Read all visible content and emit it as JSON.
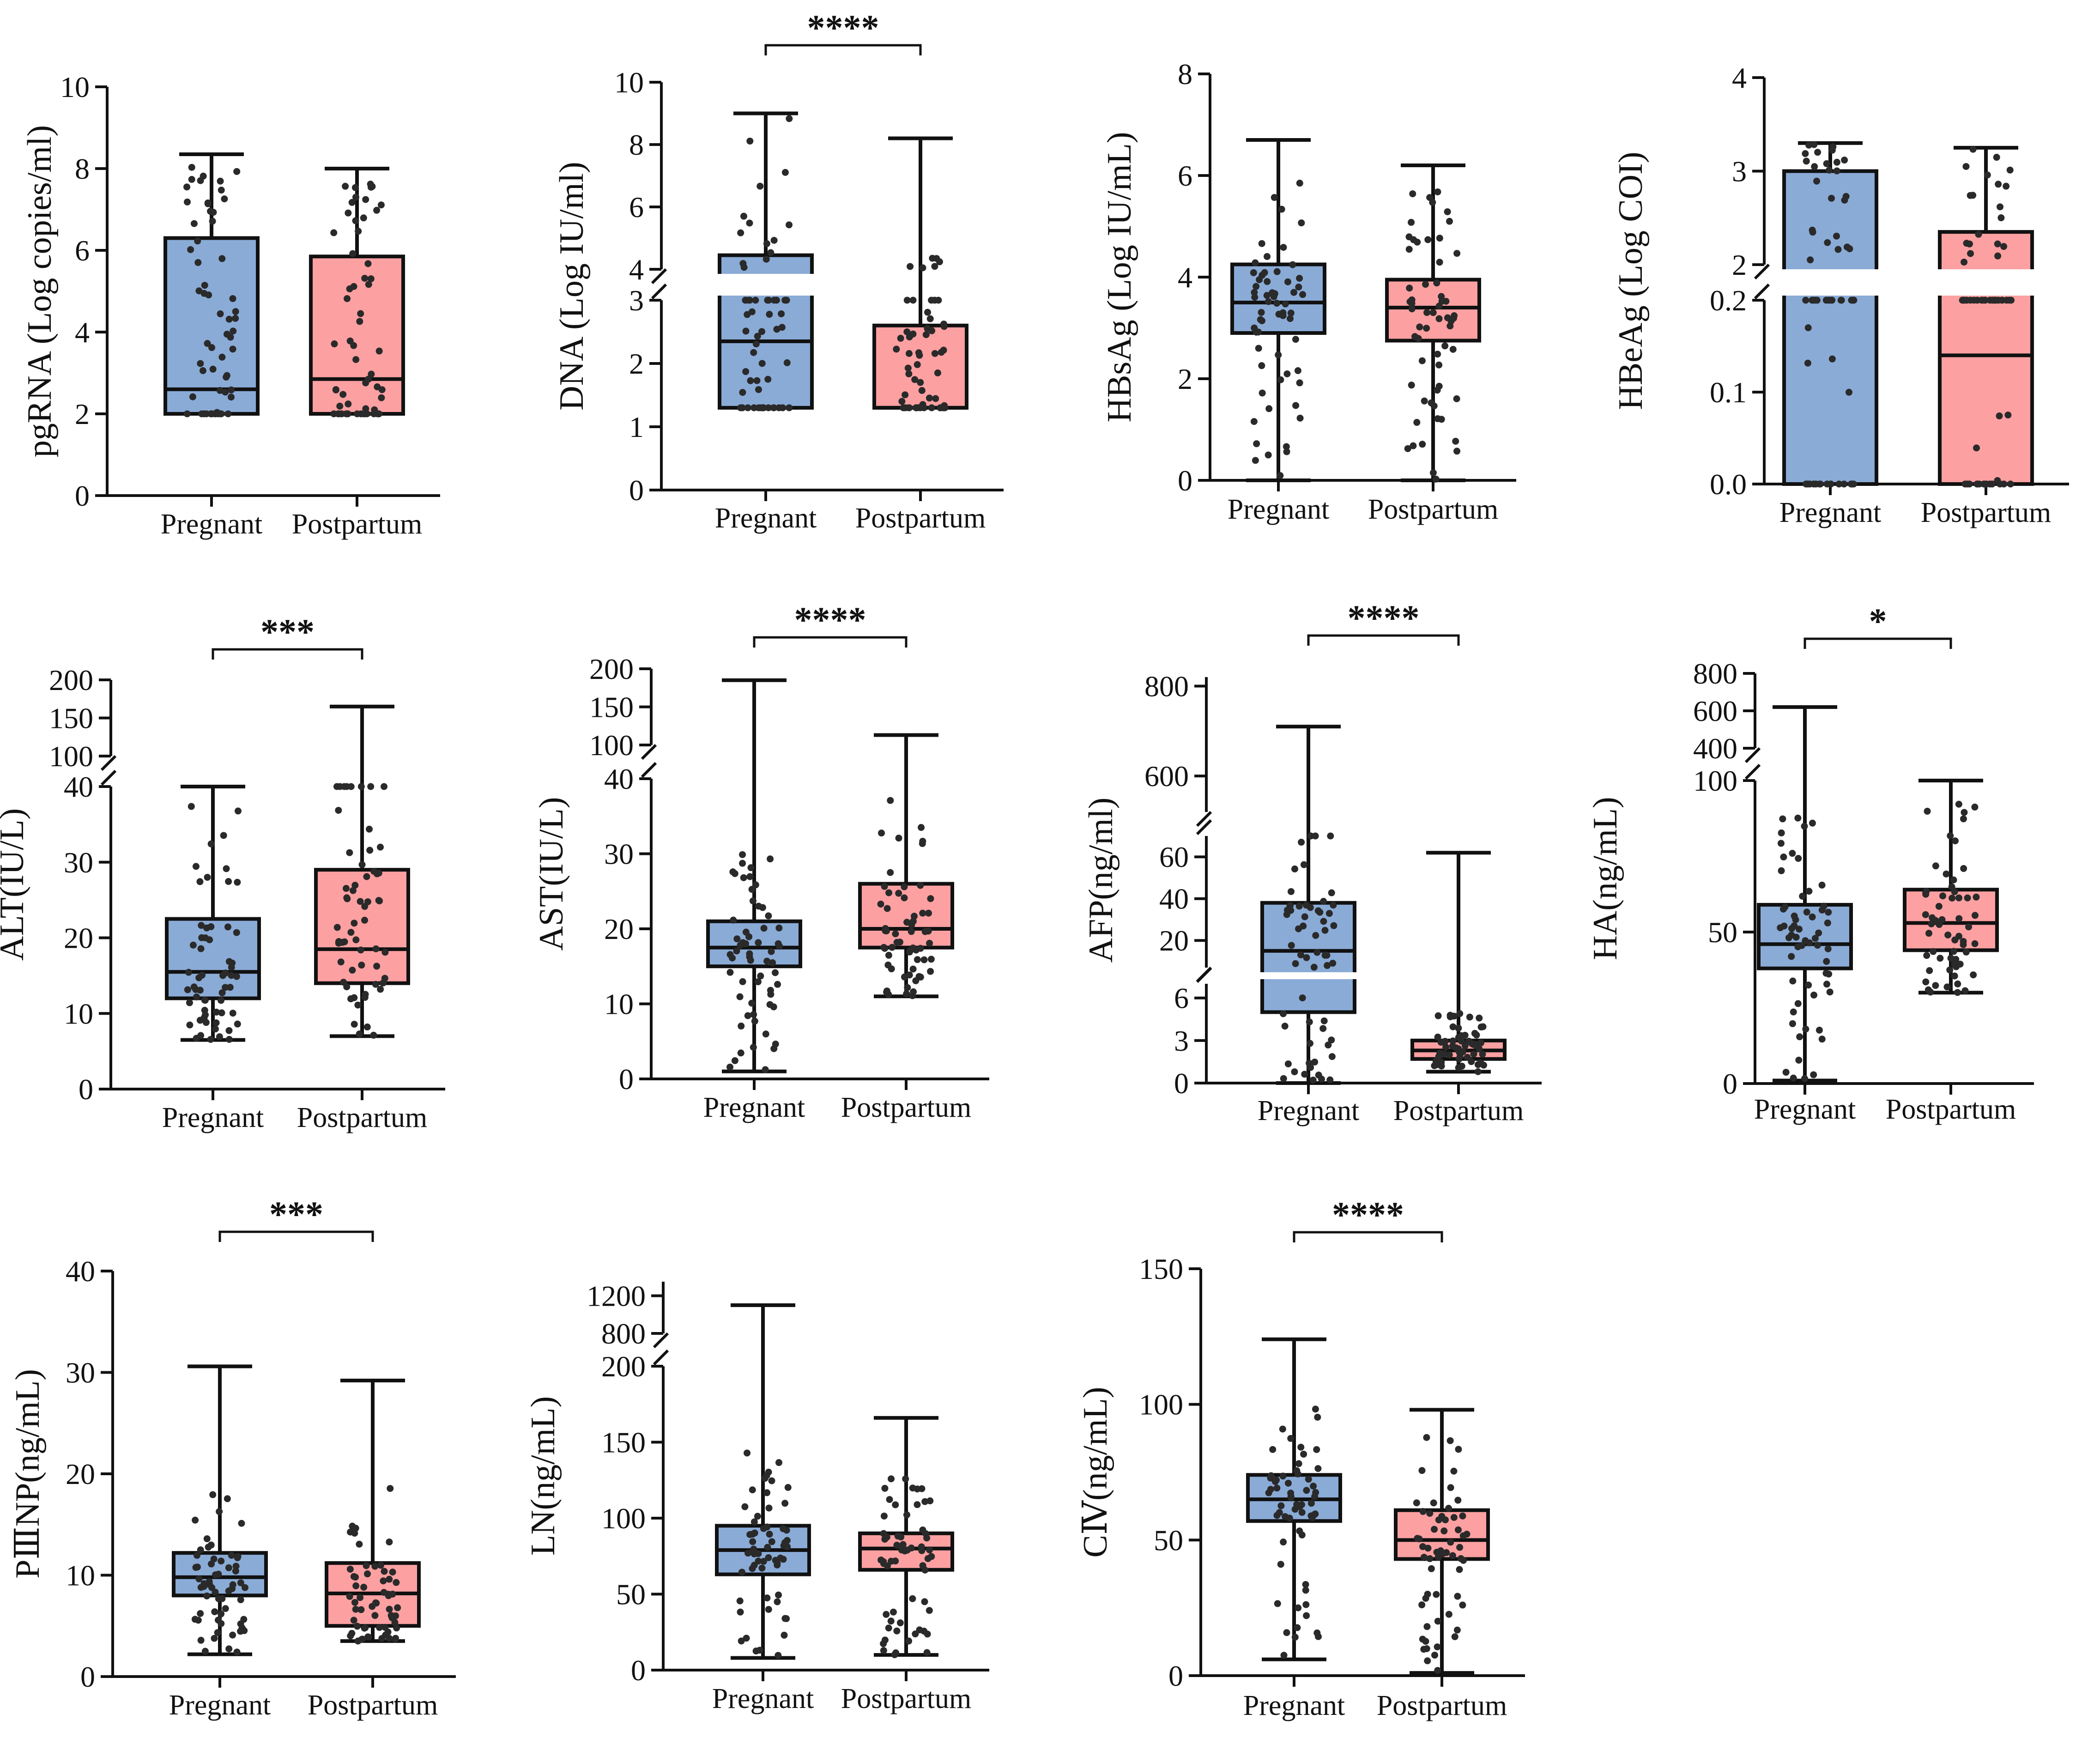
{
  "colors": {
    "pregnant": "#8AABD6",
    "postpartum": "#FCA0A2",
    "ink": "#111111",
    "dots": "#2a2a2a"
  },
  "chart_data": [
    {
      "type": "box",
      "ylabel": "pgRNA (Log copies/ml)",
      "categories": [
        "Pregnant",
        "Postpartum"
      ],
      "sig": "",
      "segments": [
        {
          "ylim": [
            0,
            10
          ],
          "ticks": [
            0,
            2,
            4,
            6,
            8,
            10
          ]
        }
      ],
      "series": [
        {
          "name": "Pregnant",
          "min": 2.0,
          "q1": 2.0,
          "median": 2.6,
          "q3": 6.3,
          "max": 8.35
        },
        {
          "name": "Postpartum",
          "min": 2.0,
          "q1": 2.0,
          "median": 2.85,
          "q3": 5.85,
          "max": 8.0
        }
      ]
    },
    {
      "type": "box",
      "ylabel": "DNA (Log IU/ml)",
      "categories": [
        "Pregnant",
        "Postpartum"
      ],
      "sig": "****",
      "segments": [
        {
          "ylim": [
            0,
            3
          ],
          "ticks": [
            0,
            1,
            2,
            3
          ]
        },
        {
          "ylim": [
            4,
            10
          ],
          "ticks": [
            4,
            6,
            8,
            10
          ]
        }
      ],
      "series": [
        {
          "name": "Pregnant",
          "min": 1.3,
          "q1": 1.3,
          "median": 2.35,
          "q3": 4.45,
          "max": 9.0
        },
        {
          "name": "Postpartum",
          "min": 1.3,
          "q1": 1.3,
          "median": 1.3,
          "q3": 2.6,
          "max": 8.2
        }
      ]
    },
    {
      "type": "box",
      "ylabel": "HBsAg (Log IU/mL)",
      "categories": [
        "Pregnant",
        "Postpartum"
      ],
      "sig": "",
      "segments": [
        {
          "ylim": [
            0,
            8
          ],
          "ticks": [
            0,
            2,
            4,
            6,
            8
          ]
        }
      ],
      "series": [
        {
          "name": "Pregnant",
          "min": 0.0,
          "q1": 2.9,
          "median": 3.5,
          "q3": 4.25,
          "max": 6.7
        },
        {
          "name": "Postpartum",
          "min": 0.0,
          "q1": 2.75,
          "median": 3.4,
          "q3": 3.95,
          "max": 6.2
        }
      ]
    },
    {
      "type": "box",
      "ylabel": "HBeAg (Log COI)",
      "categories": [
        "Pregnant",
        "Postpartum"
      ],
      "sig": "",
      "segments": [
        {
          "ylim": [
            0,
            0.2
          ],
          "ticks": [
            0.0,
            0.1,
            0.2
          ]
        },
        {
          "ylim": [
            2,
            4
          ],
          "ticks": [
            2,
            3,
            4
          ]
        }
      ],
      "series": [
        {
          "name": "Pregnant",
          "min": 0.0,
          "q1": 0.0,
          "median": 0.0,
          "q3": 3.0,
          "max": 3.3
        },
        {
          "name": "Postpartum",
          "min": 0.0,
          "q1": 0.0,
          "median": 0.14,
          "q3": 2.35,
          "max": 3.25
        }
      ]
    },
    {
      "type": "box",
      "ylabel": "ALT(IU/L)",
      "categories": [
        "Pregnant",
        "Postpartum"
      ],
      "sig": "***",
      "segments": [
        {
          "ylim": [
            0,
            40
          ],
          "ticks": [
            0,
            10,
            20,
            30,
            40
          ]
        },
        {
          "ylim": [
            100,
            200
          ],
          "ticks": [
            100,
            150,
            200
          ]
        }
      ],
      "series": [
        {
          "name": "Pregnant",
          "min": 6.5,
          "q1": 12.0,
          "median": 15.5,
          "q3": 22.5,
          "max": 40.0
        },
        {
          "name": "Postpartum",
          "min": 7.0,
          "q1": 14.0,
          "median": 18.5,
          "q3": 29.0,
          "max": 165
        }
      ]
    },
    {
      "type": "box",
      "ylabel": "AST(IU/L)",
      "categories": [
        "Pregnant",
        "Postpartum"
      ],
      "sig": "****",
      "segments": [
        {
          "ylim": [
            0,
            40
          ],
          "ticks": [
            0,
            10,
            20,
            30,
            40
          ]
        },
        {
          "ylim": [
            100,
            200
          ],
          "ticks": [
            100,
            150,
            200
          ]
        }
      ],
      "series": [
        {
          "name": "Pregnant",
          "min": 1.0,
          "q1": 15.0,
          "median": 17.5,
          "q3": 21.0,
          "max": 185
        },
        {
          "name": "Postpartum",
          "min": 11.0,
          "q1": 17.5,
          "median": 20.0,
          "q3": 26.0,
          "max": 113
        }
      ]
    },
    {
      "type": "box",
      "ylabel": "AFP(ng/ml)",
      "categories": [
        "Pregnant",
        "Postpartum"
      ],
      "sig": "****",
      "segments": [
        {
          "ylim": [
            0,
            7
          ],
          "ticks": [
            0,
            3,
            6
          ]
        },
        {
          "ylim": [
            7,
            70
          ],
          "ticks": [
            20,
            40,
            60
          ]
        },
        {
          "ylim": [
            520,
            820
          ],
          "ticks": [
            600,
            800
          ]
        }
      ],
      "series": [
        {
          "name": "Pregnant",
          "min": 0.0,
          "q1": 5.0,
          "median": 15.0,
          "q3": 38.0,
          "max": 710
        },
        {
          "name": "Postpartum",
          "min": 0.8,
          "q1": 1.7,
          "median": 2.3,
          "q3": 3.0,
          "max": 62
        }
      ]
    },
    {
      "type": "box",
      "ylabel": "HA(ng/mL)",
      "categories": [
        "Pregnant",
        "Postpartum"
      ],
      "sig": "*",
      "segments": [
        {
          "ylim": [
            0,
            100
          ],
          "ticks": [
            0,
            50,
            100
          ]
        },
        {
          "ylim": [
            400,
            800
          ],
          "ticks": [
            400,
            600,
            800
          ]
        }
      ],
      "series": [
        {
          "name": "Pregnant",
          "min": 1.0,
          "q1": 38.0,
          "median": 46.0,
          "q3": 59.0,
          "max": 620
        },
        {
          "name": "Postpartum",
          "min": 30.0,
          "q1": 44.0,
          "median": 53.0,
          "q3": 64.0,
          "max": 100
        }
      ]
    },
    {
      "type": "box",
      "ylabel": "PⅢNP(ng/mL)",
      "categories": [
        "Pregnant",
        "Postpartum"
      ],
      "sig": "***",
      "segments": [
        {
          "ylim": [
            0,
            40
          ],
          "ticks": [
            0,
            10,
            20,
            30,
            40
          ]
        }
      ],
      "series": [
        {
          "name": "Pregnant",
          "min": 2.2,
          "q1": 8.0,
          "median": 9.8,
          "q3": 12.2,
          "max": 30.6
        },
        {
          "name": "Postpartum",
          "min": 3.5,
          "q1": 5.0,
          "median": 8.2,
          "q3": 11.2,
          "max": 29.2
        }
      ]
    },
    {
      "type": "box",
      "ylabel": "LN(ng/mL)",
      "categories": [
        "Pregnant",
        "Postpartum"
      ],
      "sig": "",
      "segments": [
        {
          "ylim": [
            0,
            200
          ],
          "ticks": [
            0,
            50,
            100,
            150,
            200
          ]
        },
        {
          "ylim": [
            800,
            1350
          ],
          "ticks": [
            800,
            1200
          ]
        }
      ],
      "series": [
        {
          "name": "Pregnant",
          "min": 8.0,
          "q1": 63.0,
          "median": 79.0,
          "q3": 95.0,
          "max": 1100
        },
        {
          "name": "Postpartum",
          "min": 10.0,
          "q1": 66.0,
          "median": 80.0,
          "q3": 90.0,
          "max": 166
        }
      ]
    },
    {
      "type": "box",
      "ylabel": "CⅣ(ng/mL)",
      "categories": [
        "Pregnant",
        "Postpartum"
      ],
      "sig": "****",
      "segments": [
        {
          "ylim": [
            0,
            150
          ],
          "ticks": [
            0,
            50,
            100,
            150
          ]
        }
      ],
      "series": [
        {
          "name": "Pregnant",
          "min": 6.0,
          "q1": 57.0,
          "median": 65.0,
          "q3": 74.0,
          "max": 124
        },
        {
          "name": "Postpartum",
          "min": 1.0,
          "q1": 43.0,
          "median": 50.0,
          "q3": 61.0,
          "max": 98
        }
      ]
    }
  ]
}
